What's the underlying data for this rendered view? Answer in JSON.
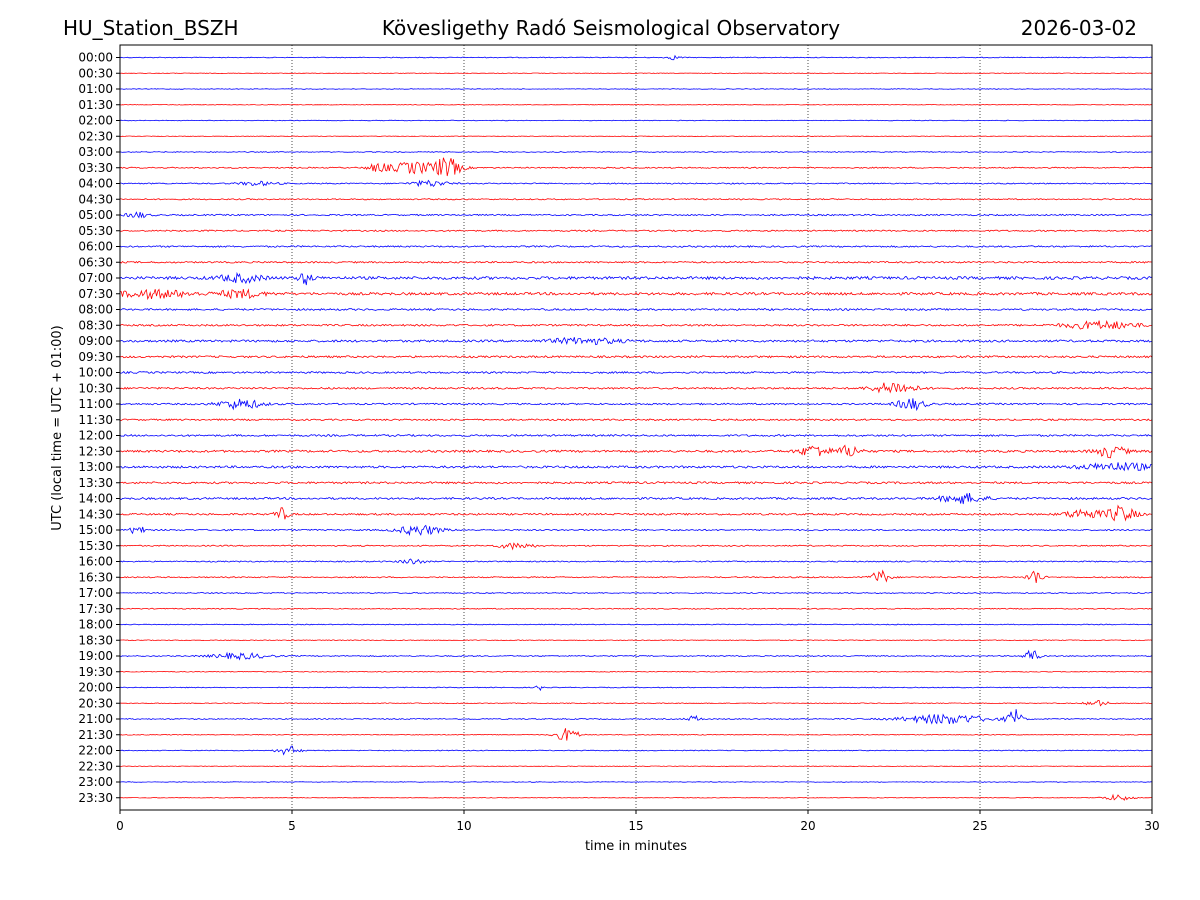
{
  "header": {
    "station": "HU_Station_BSZH",
    "observatory": "Kövesligethy Radó Seismological Observatory",
    "date": "2026-03-02"
  },
  "chart_data": {
    "type": "line",
    "title": "Kövesligethy Radó Seismological Observatory",
    "xlabel": "time in minutes",
    "ylabel": "UTC (local time = UTC + 01:00)",
    "xlim": [
      0,
      30
    ],
    "xticks": [
      0,
      5,
      10,
      15,
      20,
      25,
      30
    ],
    "grid": "vertical dotted lines at x ticks",
    "row_labels": [
      "00:00",
      "00:30",
      "01:00",
      "01:30",
      "02:00",
      "02:30",
      "03:00",
      "03:30",
      "04:00",
      "04:30",
      "05:00",
      "05:30",
      "06:00",
      "06:30",
      "07:00",
      "07:30",
      "08:00",
      "08:30",
      "09:00",
      "09:30",
      "10:00",
      "10:30",
      "11:00",
      "11:30",
      "12:00",
      "12:30",
      "13:00",
      "13:30",
      "14:00",
      "14:30",
      "15:00",
      "15:30",
      "16:00",
      "16:30",
      "17:00",
      "17:30",
      "18:00",
      "18:30",
      "19:00",
      "19:30",
      "20:00",
      "20:30",
      "21:00",
      "21:30",
      "22:00",
      "22:30",
      "23:00",
      "23:30"
    ],
    "colors": [
      "#0000ff",
      "#ff0000"
    ],
    "noise_levels": [
      0.4,
      0.3,
      0.3,
      0.3,
      0.3,
      0.3,
      0.4,
      0.6,
      0.6,
      0.6,
      0.7,
      0.7,
      0.8,
      0.8,
      1.4,
      1.3,
      0.9,
      0.9,
      1.1,
      1.0,
      0.9,
      0.9,
      0.8,
      0.8,
      0.9,
      1.1,
      1.1,
      1.0,
      1.0,
      0.9,
      0.7,
      0.6,
      0.6,
      0.6,
      0.5,
      0.5,
      0.4,
      0.4,
      0.5,
      0.4,
      0.4,
      0.4,
      0.5,
      0.4,
      0.4,
      0.3,
      0.3,
      0.3
    ],
    "events": [
      {
        "row": 0,
        "minute": 16.1,
        "amp": 2,
        "width": 0.2
      },
      {
        "row": 7,
        "minute": 7.5,
        "amp": 4,
        "width": 0.3
      },
      {
        "row": 7,
        "minute": 8.5,
        "amp": 6,
        "width": 0.6
      },
      {
        "row": 7,
        "minute": 9.5,
        "amp": 10,
        "width": 0.4
      },
      {
        "row": 8,
        "minute": 4.0,
        "amp": 2,
        "width": 0.5
      },
      {
        "row": 8,
        "minute": 9.0,
        "amp": 3,
        "width": 0.5
      },
      {
        "row": 10,
        "minute": 0.5,
        "amp": 3,
        "width": 0.3
      },
      {
        "row": 14,
        "minute": 3.5,
        "amp": 4,
        "width": 0.6
      },
      {
        "row": 14,
        "minute": 5.4,
        "amp": 6,
        "width": 0.2
      },
      {
        "row": 15,
        "minute": 1.0,
        "amp": 4,
        "width": 1.0
      },
      {
        "row": 15,
        "minute": 3.5,
        "amp": 4,
        "width": 0.6
      },
      {
        "row": 17,
        "minute": 28.5,
        "amp": 4,
        "width": 1.0
      },
      {
        "row": 18,
        "minute": 13.5,
        "amp": 3,
        "width": 1.0
      },
      {
        "row": 21,
        "minute": 22.5,
        "amp": 6,
        "width": 0.6
      },
      {
        "row": 22,
        "minute": 3.5,
        "amp": 5,
        "width": 0.6
      },
      {
        "row": 22,
        "minute": 23.0,
        "amp": 6,
        "width": 0.4
      },
      {
        "row": 25,
        "minute": 20.2,
        "amp": 6,
        "width": 0.4
      },
      {
        "row": 25,
        "minute": 21.2,
        "amp": 6,
        "width": 0.3
      },
      {
        "row": 25,
        "minute": 28.8,
        "amp": 6,
        "width": 0.4
      },
      {
        "row": 26,
        "minute": 29.0,
        "amp": 4,
        "width": 1.0
      },
      {
        "row": 28,
        "minute": 24.5,
        "amp": 5,
        "width": 0.6
      },
      {
        "row": 29,
        "minute": 4.7,
        "amp": 6,
        "width": 0.2
      },
      {
        "row": 29,
        "minute": 28.0,
        "amp": 5,
        "width": 0.5
      },
      {
        "row": 29,
        "minute": 29.1,
        "amp": 8,
        "width": 0.4
      },
      {
        "row": 30,
        "minute": 0.5,
        "amp": 8,
        "width": 0.15
      },
      {
        "row": 30,
        "minute": 8.7,
        "amp": 5,
        "width": 0.6
      },
      {
        "row": 31,
        "minute": 11.5,
        "amp": 3,
        "width": 0.5
      },
      {
        "row": 32,
        "minute": 8.5,
        "amp": 3,
        "width": 0.3
      },
      {
        "row": 33,
        "minute": 22.1,
        "amp": 7,
        "width": 0.25
      },
      {
        "row": 33,
        "minute": 26.6,
        "amp": 8,
        "width": 0.2
      },
      {
        "row": 38,
        "minute": 3.5,
        "amp": 3,
        "width": 0.8
      },
      {
        "row": 38,
        "minute": 26.5,
        "amp": 7,
        "width": 0.2
      },
      {
        "row": 40,
        "minute": 12.2,
        "amp": 3,
        "width": 0.1
      },
      {
        "row": 41,
        "minute": 28.4,
        "amp": 3,
        "width": 0.3
      },
      {
        "row": 42,
        "minute": 16.7,
        "amp": 3,
        "width": 0.2
      },
      {
        "row": 42,
        "minute": 24.0,
        "amp": 5,
        "width": 1.2
      },
      {
        "row": 42,
        "minute": 26.0,
        "amp": 10,
        "width": 0.2
      },
      {
        "row": 43,
        "minute": 13.0,
        "amp": 7,
        "width": 0.3
      },
      {
        "row": 44,
        "minute": 4.9,
        "amp": 5,
        "width": 0.3
      },
      {
        "row": 47,
        "minute": 29.0,
        "amp": 3,
        "width": 0.4
      }
    ]
  }
}
